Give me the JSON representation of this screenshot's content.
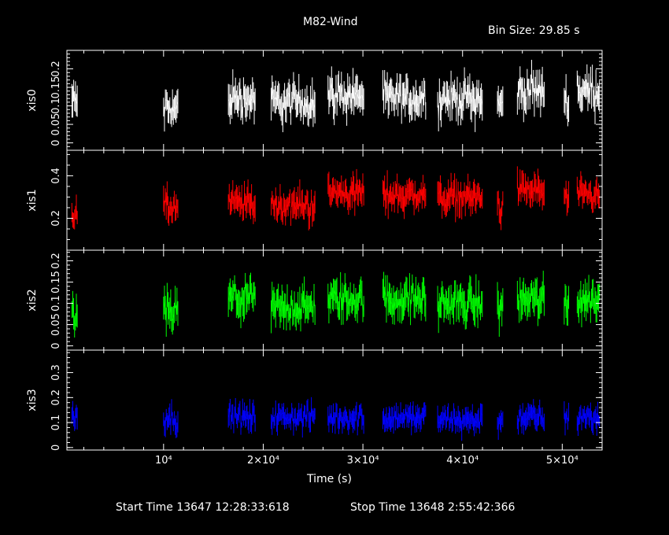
{
  "chart_data": {
    "type": "line",
    "title": "M82-Wind",
    "bin_size": "Bin Size: 29.85 s",
    "xlabel": "Time (s)",
    "xlim": [
      300,
      54000
    ],
    "x_ticks": [
      {
        "value": 10000,
        "label": "10⁴"
      },
      {
        "value": 20000,
        "label": "2×10⁴"
      },
      {
        "value": 30000,
        "label": "3×10⁴"
      },
      {
        "value": 40000,
        "label": "4×10⁴"
      },
      {
        "value": 50000,
        "label": "5×10⁴"
      }
    ],
    "segments": [
      {
        "start": 800,
        "end": 1400
      },
      {
        "start": 10000,
        "end": 11500
      },
      {
        "start": 16500,
        "end": 19200
      },
      {
        "start": 20800,
        "end": 25200
      },
      {
        "start": 26500,
        "end": 30100
      },
      {
        "start": 32000,
        "end": 36300
      },
      {
        "start": 37500,
        "end": 42000
      },
      {
        "start": 43500,
        "end": 44100
      },
      {
        "start": 45500,
        "end": 48200
      },
      {
        "start": 50200,
        "end": 50700
      },
      {
        "start": 51500,
        "end": 53800
      }
    ],
    "panels": [
      {
        "name": "xis0",
        "color": "#ffffff",
        "ylim": [
          -0.02,
          0.25
        ],
        "ticks": [
          {
            "value": 0,
            "label": "0"
          },
          {
            "value": 0.05,
            "label": "0.05"
          },
          {
            "value": 0.1,
            "label": "0.1"
          },
          {
            "value": 0.15,
            "label": "0.15"
          },
          {
            "value": 0.2,
            "label": "0.2"
          }
        ],
        "minor_step": 0.01,
        "segment_means": [
          0.11,
          0.09,
          0.12,
          0.11,
          0.13,
          0.12,
          0.12,
          0.1,
          0.14,
          0.12,
          0.14
        ],
        "noise": 0.035
      },
      {
        "name": "xis1",
        "color": "#ff0000",
        "ylim": [
          0.05,
          0.52
        ],
        "ticks": [
          {
            "value": 0.2,
            "label": "0.2"
          },
          {
            "value": 0.4,
            "label": "0.4"
          }
        ],
        "minor_step": 0.05,
        "segment_means": [
          0.22,
          0.25,
          0.27,
          0.26,
          0.32,
          0.31,
          0.3,
          0.25,
          0.33,
          0.29,
          0.3
        ],
        "noise": 0.05
      },
      {
        "name": "xis2",
        "color": "#00ff00",
        "ylim": [
          -0.01,
          0.225
        ],
        "ticks": [
          {
            "value": 0,
            "label": "0"
          },
          {
            "value": 0.05,
            "label": "0.05"
          },
          {
            "value": 0.1,
            "label": "0.1"
          },
          {
            "value": 0.15,
            "label": "0.15"
          },
          {
            "value": 0.2,
            "label": "0.2"
          }
        ],
        "minor_step": 0.01,
        "segment_means": [
          0.07,
          0.08,
          0.11,
          0.09,
          0.11,
          0.11,
          0.1,
          0.09,
          0.11,
          0.1,
          0.11
        ],
        "noise": 0.03
      },
      {
        "name": "xis3",
        "color": "#0000ff",
        "ylim": [
          -0.01,
          0.39
        ],
        "ticks": [
          {
            "value": 0,
            "label": "0"
          },
          {
            "value": 0.1,
            "label": "0.1"
          },
          {
            "value": 0.2,
            "label": "0.2"
          },
          {
            "value": 0.3,
            "label": "0.3"
          }
        ],
        "minor_step": 0.02,
        "segment_means": [
          0.13,
          0.12,
          0.12,
          0.12,
          0.12,
          0.12,
          0.11,
          0.11,
          0.12,
          0.11,
          0.12
        ],
        "noise": 0.035
      }
    ]
  },
  "footer": {
    "start_time": "Start Time 13647 12:28:33:618",
    "stop_time": "Stop Time 13648  2:55:42:366"
  }
}
